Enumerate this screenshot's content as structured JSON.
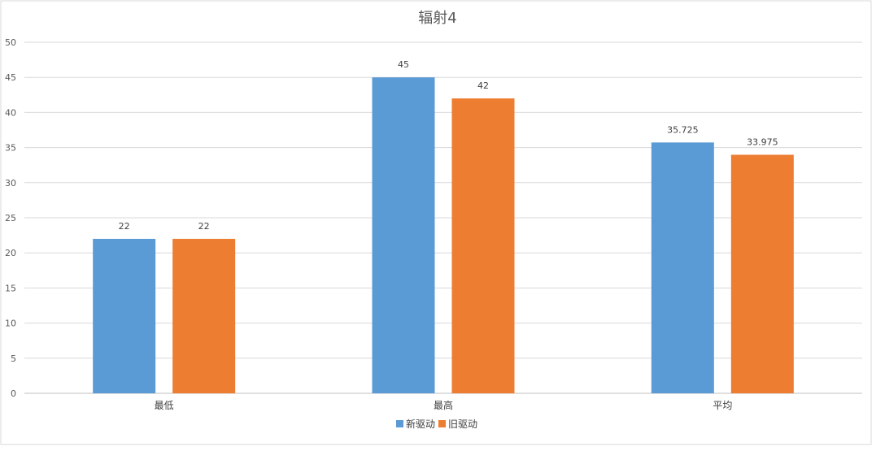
{
  "chart_data": {
    "type": "bar",
    "title": "辐射4",
    "categories": [
      "最低",
      "最高",
      "平均"
    ],
    "series": [
      {
        "name": "新驱动",
        "color": "#5B9BD5",
        "values": [
          22,
          45,
          35.725
        ]
      },
      {
        "name": "旧驱动",
        "color": "#ED7D31",
        "values": [
          22,
          42,
          33.975
        ]
      }
    ],
    "yticks": [
      0,
      5,
      10,
      15,
      20,
      25,
      30,
      35,
      40,
      45,
      50
    ],
    "ylim": [
      0,
      50
    ],
    "grid": true,
    "legend": "bottom",
    "xlabel": "",
    "ylabel": ""
  }
}
